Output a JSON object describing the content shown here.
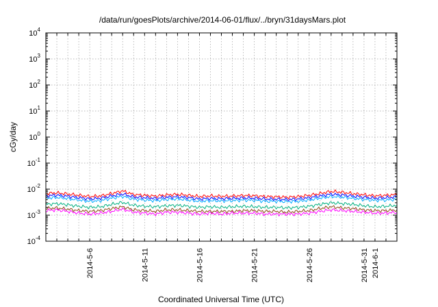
{
  "chart_data": {
    "type": "line",
    "title": "/data/run/goesPlots/archive/2014-06-01/flux/../bryn/31daysMars.plot",
    "xlabel": "Coordinated Universal Time (UTC)",
    "ylabel": "cGy/day",
    "yscale": "log",
    "ylim": [
      0.0001,
      10000
    ],
    "xlim": [
      "2014-05-02",
      "2014-06-03"
    ],
    "grid": true,
    "y_ticks": [
      {
        "base": "10",
        "exp": "-4",
        "value": 0.0001
      },
      {
        "base": "10",
        "exp": "-3",
        "value": 0.001
      },
      {
        "base": "10",
        "exp": "-2",
        "value": 0.01
      },
      {
        "base": "10",
        "exp": "-1",
        "value": 0.1
      },
      {
        "base": "10",
        "exp": "0",
        "value": 1
      },
      {
        "base": "10",
        "exp": "1",
        "value": 10
      },
      {
        "base": "10",
        "exp": "2",
        "value": 100
      },
      {
        "base": "10",
        "exp": "3",
        "value": 1000
      },
      {
        "base": "10",
        "exp": "4",
        "value": 10000
      }
    ],
    "x_ticks": [
      {
        "label": "2014-5-6",
        "date": "2014-05-06"
      },
      {
        "label": "2014-5-11",
        "date": "2014-05-11"
      },
      {
        "label": "2014-5-16",
        "date": "2014-05-16"
      },
      {
        "label": "2014-5-21",
        "date": "2014-05-21"
      },
      {
        "label": "2014-5-26",
        "date": "2014-05-26"
      },
      {
        "label": "2014-5-31",
        "date": "2014-05-31"
      },
      {
        "label": "2014-6-1",
        "date": "2014-06-01"
      }
    ],
    "x": [
      "2014-05-02",
      "2014-05-03",
      "2014-05-04",
      "2014-05-05",
      "2014-05-06",
      "2014-05-07",
      "2014-05-08",
      "2014-05-09",
      "2014-05-10",
      "2014-05-11",
      "2014-05-12",
      "2014-05-13",
      "2014-05-14",
      "2014-05-15",
      "2014-05-16",
      "2014-05-17",
      "2014-05-18",
      "2014-05-19",
      "2014-05-20",
      "2014-05-21",
      "2014-05-22",
      "2014-05-23",
      "2014-05-24",
      "2014-05-25",
      "2014-05-26",
      "2014-05-27",
      "2014-05-28",
      "2014-05-29",
      "2014-05-30",
      "2014-05-31",
      "2014-06-01",
      "2014-06-02",
      "2014-06-03"
    ],
    "series": [
      {
        "color": "#ff0000",
        "values": [
          0.0068,
          0.0072,
          0.0065,
          0.0058,
          0.0052,
          0.0055,
          0.0068,
          0.0085,
          0.0062,
          0.0058,
          0.0054,
          0.006,
          0.0063,
          0.0058,
          0.0052,
          0.0055,
          0.0053,
          0.0054,
          0.0057,
          0.0056,
          0.0052,
          0.0051,
          0.0049,
          0.0052,
          0.0058,
          0.0068,
          0.0082,
          0.0076,
          0.0067,
          0.0061,
          0.0055,
          0.0058,
          0.0062
        ]
      },
      {
        "color": "#0000ff",
        "values": [
          0.0055,
          0.0059,
          0.0053,
          0.0047,
          0.0042,
          0.0045,
          0.0055,
          0.0065,
          0.005,
          0.0047,
          0.0044,
          0.0049,
          0.0051,
          0.0047,
          0.0042,
          0.0044,
          0.0043,
          0.0044,
          0.0046,
          0.0045,
          0.0042,
          0.0041,
          0.004,
          0.0042,
          0.0047,
          0.0055,
          0.0064,
          0.006,
          0.0054,
          0.0049,
          0.0045,
          0.0047,
          0.005
        ]
      },
      {
        "color": "#00aaff",
        "values": [
          0.0045,
          0.0048,
          0.0043,
          0.0038,
          0.0034,
          0.0036,
          0.0045,
          0.0053,
          0.0041,
          0.0038,
          0.0036,
          0.004,
          0.0042,
          0.0038,
          0.0034,
          0.0036,
          0.0035,
          0.0036,
          0.0038,
          0.0037,
          0.0034,
          0.0034,
          0.0033,
          0.0034,
          0.0038,
          0.0045,
          0.0052,
          0.0049,
          0.0044,
          0.004,
          0.0037,
          0.0038,
          0.0041
        ]
      },
      {
        "color": "#00b080",
        "values": [
          0.0026,
          0.0028,
          0.0025,
          0.0022,
          0.002,
          0.0021,
          0.0026,
          0.0031,
          0.0024,
          0.0022,
          0.0021,
          0.0023,
          0.0024,
          0.0022,
          0.002,
          0.0021,
          0.002,
          0.0021,
          0.0022,
          0.0021,
          0.002,
          0.002,
          0.0019,
          0.002,
          0.0022,
          0.0026,
          0.003,
          0.0028,
          0.0026,
          0.0023,
          0.0021,
          0.0022,
          0.0024
        ]
      },
      {
        "color": "#8b4513",
        "values": [
          0.0018,
          0.0019,
          0.0017,
          0.0015,
          0.0014,
          0.0015,
          0.0018,
          0.0021,
          0.0016,
          0.0015,
          0.0014,
          0.0016,
          0.0016,
          0.0015,
          0.0014,
          0.0014,
          0.0014,
          0.0014,
          0.0015,
          0.0015,
          0.0014,
          0.0014,
          0.0013,
          0.0014,
          0.0015,
          0.0018,
          0.0021,
          0.0019,
          0.0018,
          0.0016,
          0.0015,
          0.0015,
          0.0016
        ]
      },
      {
        "color": "#ff00ff",
        "values": [
          0.0015,
          0.0016,
          0.0014,
          0.0012,
          0.0011,
          0.0012,
          0.0014,
          0.0017,
          0.0013,
          0.0012,
          0.0011,
          0.0013,
          0.0013,
          0.0012,
          0.0011,
          0.0012,
          0.0011,
          0.0012,
          0.0012,
          0.0012,
          0.0011,
          0.0011,
          0.0011,
          0.0011,
          0.0012,
          0.0014,
          0.0016,
          0.0015,
          0.0014,
          0.0013,
          0.0012,
          0.0012,
          0.0013
        ]
      }
    ]
  }
}
